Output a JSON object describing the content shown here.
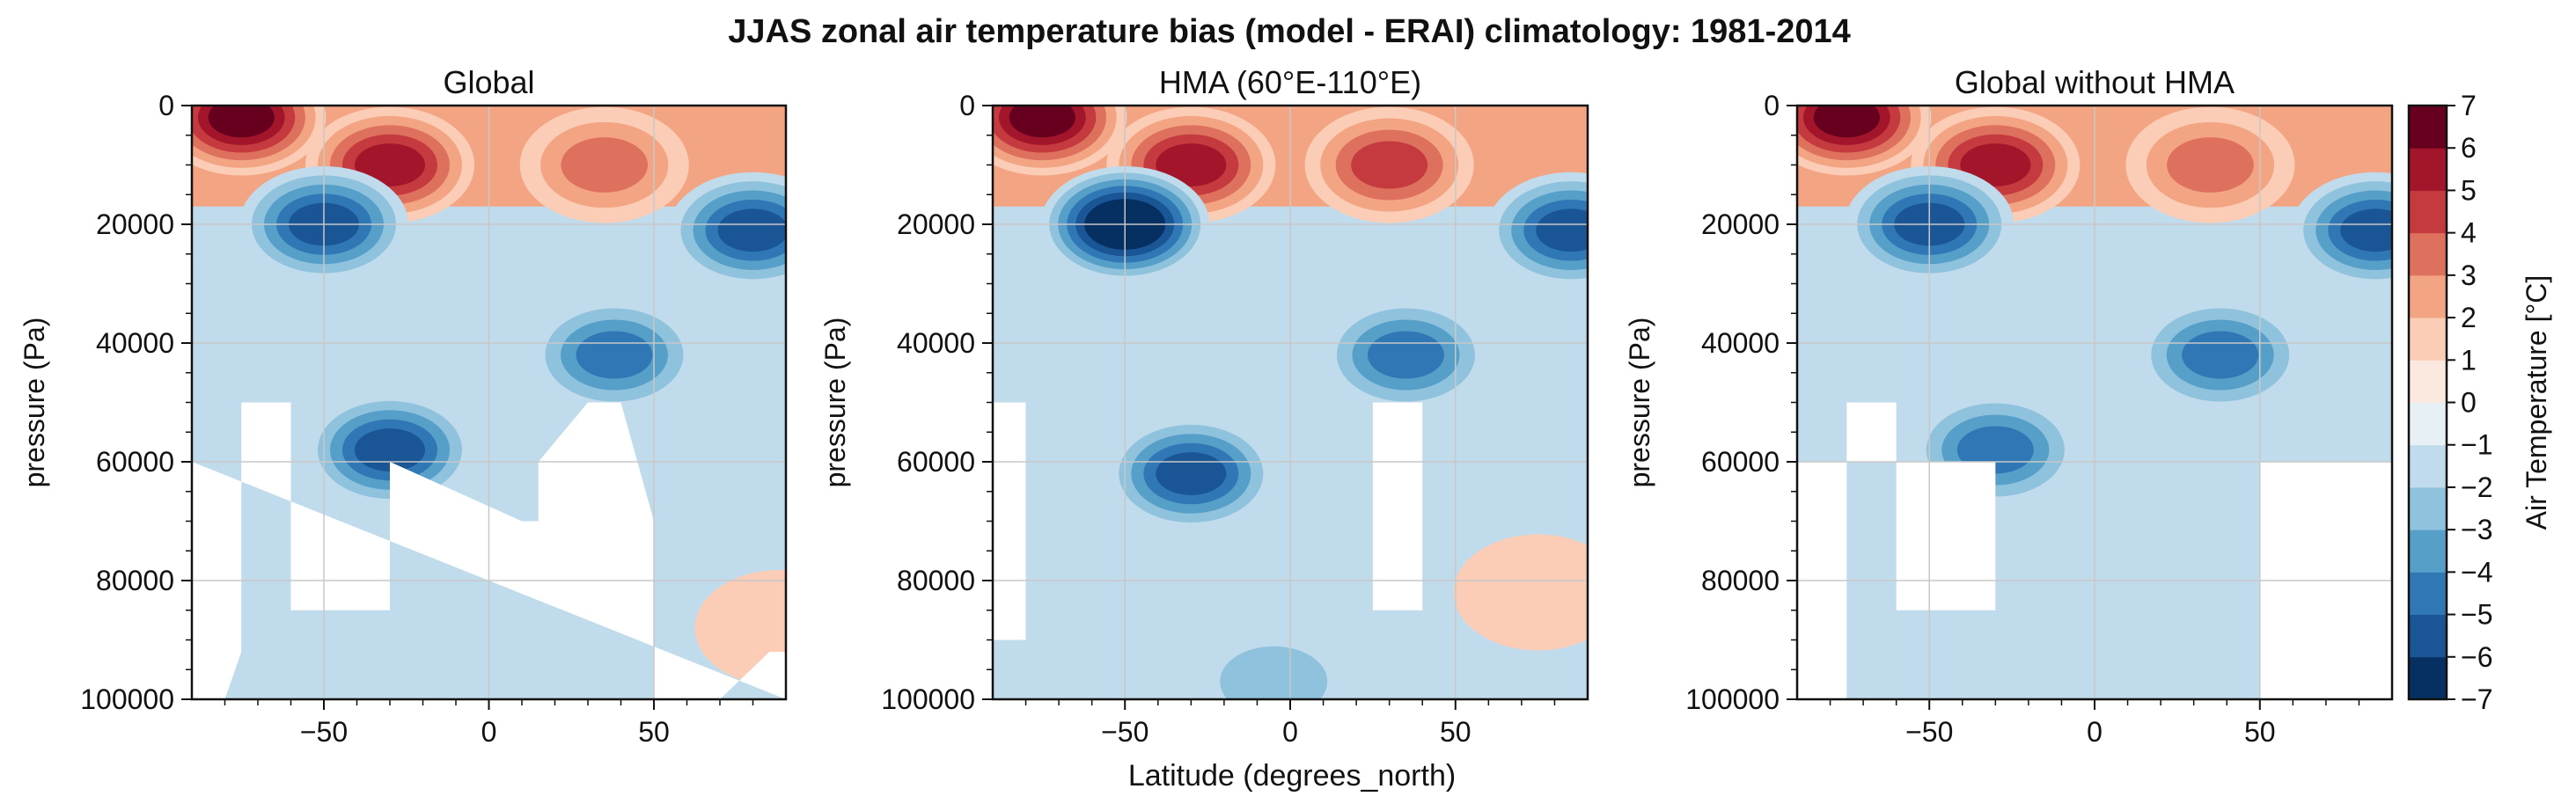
{
  "figure": {
    "suptitle": "JJAS zonal air temperature bias (model - ERAI) climatology: 1981-2014",
    "shared_xlabel": "Latitude (degrees_north)"
  },
  "colorbar": {
    "label": "Air Temperature [°C]",
    "levels": [
      -7,
      -6,
      -5,
      -4,
      -3,
      -2,
      -1,
      0,
      1,
      2,
      3,
      4,
      5,
      6,
      7
    ],
    "tick_labels": [
      "−7",
      "−6",
      "−5",
      "−4",
      "−3",
      "−2",
      "−1",
      "0",
      "1",
      "2",
      "3",
      "4",
      "5",
      "6",
      "7"
    ],
    "colors": [
      "#053061",
      "#1a5596",
      "#2f78b5",
      "#569fc9",
      "#8fc2dd",
      "#c0dbeb",
      "#e7f0f5",
      "#fbe9e0",
      "#fbcdb6",
      "#f3a583",
      "#de715e",
      "#c43a3f",
      "#a2152a",
      "#67001f"
    ]
  },
  "chart_data": [
    {
      "type": "heatmap",
      "title": "Global",
      "xlabel": "",
      "ylabel": "pressure (Pa)",
      "xlim": [
        -90,
        90
      ],
      "ylim": [
        100000,
        0
      ],
      "xticks": [
        -50,
        0,
        50
      ],
      "xtick_labels": [
        "−50",
        "0",
        "50"
      ],
      "yticks": [
        0,
        20000,
        40000,
        60000,
        80000,
        100000
      ],
      "ytick_labels": [
        "0",
        "20000",
        "40000",
        "60000",
        "80000",
        "100000"
      ],
      "grid": true,
      "tropopause_bias": 2,
      "masked_regions": [
        {
          "x": [
            -90,
            -90,
            -80,
            -75,
            -75,
            -60,
            -60,
            -30,
            -30,
            10,
            15,
            15,
            30,
            40,
            50,
            50,
            70,
            85,
            90,
            90
          ],
          "y": [
            60000,
            100000,
            100000,
            92000,
            50000,
            50000,
            85000,
            85000,
            60000,
            70000,
            70000,
            60000,
            50000,
            50000,
            70000,
            100000,
            100000,
            92000,
            92000,
            100000
          ]
        }
      ],
      "bias_features": [
        {
          "lat": -75,
          "pressure": 2000,
          "value": 6
        },
        {
          "lat": -30,
          "pressure": 10000,
          "value": 5
        },
        {
          "lat": 35,
          "pressure": 10000,
          "value": 3
        },
        {
          "lat": -50,
          "pressure": 20000,
          "value": -5
        },
        {
          "lat": 80,
          "pressure": 21000,
          "value": -5
        },
        {
          "lat": -30,
          "pressure": 58000,
          "value": -5
        },
        {
          "lat": 38,
          "pressure": 42000,
          "value": -4
        },
        {
          "lat": 88,
          "pressure": 88000,
          "value": 1
        }
      ]
    },
    {
      "type": "heatmap",
      "title": "HMA (60°E-110°E)",
      "xlabel": "Latitude (degrees_north)",
      "ylabel": "pressure (Pa)",
      "xlim": [
        -90,
        90
      ],
      "ylim": [
        100000,
        0
      ],
      "xticks": [
        -50,
        0,
        50
      ],
      "xtick_labels": [
        "−50",
        "0",
        "50"
      ],
      "yticks": [
        0,
        20000,
        40000,
        60000,
        80000,
        100000
      ],
      "ytick_labels": [
        "0",
        "20000",
        "40000",
        "60000",
        "80000",
        "100000"
      ],
      "grid": true,
      "tropopause_bias": 2,
      "masked_regions": [
        {
          "x": [
            -90,
            -90,
            -80,
            -80
          ],
          "y": [
            50000,
            90000,
            90000,
            50000
          ]
        },
        {
          "x": [
            25,
            25,
            40,
            40
          ],
          "y": [
            50000,
            85000,
            85000,
            50000
          ]
        }
      ],
      "bias_features": [
        {
          "lat": -75,
          "pressure": 2000,
          "value": 6
        },
        {
          "lat": -30,
          "pressure": 10000,
          "value": 5
        },
        {
          "lat": 30,
          "pressure": 10000,
          "value": 4
        },
        {
          "lat": -50,
          "pressure": 20000,
          "value": -7
        },
        {
          "lat": 85,
          "pressure": 21000,
          "value": -5
        },
        {
          "lat": -30,
          "pressure": 62000,
          "value": -5
        },
        {
          "lat": 35,
          "pressure": 42000,
          "value": -4
        },
        {
          "lat": 75,
          "pressure": 82000,
          "value": 1
        },
        {
          "lat": -5,
          "pressure": 97000,
          "value": -2
        }
      ]
    },
    {
      "type": "heatmap",
      "title": "Global without HMA",
      "xlabel": "",
      "ylabel": "pressure (Pa)",
      "xlim": [
        -90,
        90
      ],
      "ylim": [
        100000,
        0
      ],
      "xticks": [
        -50,
        0,
        50
      ],
      "xtick_labels": [
        "−50",
        "0",
        "50"
      ],
      "yticks": [
        0,
        20000,
        40000,
        60000,
        80000,
        100000
      ],
      "ytick_labels": [
        "0",
        "20000",
        "40000",
        "60000",
        "80000",
        "100000"
      ],
      "grid": true,
      "tropopause_bias": 2,
      "masked_regions": [
        {
          "x": [
            -90,
            -90,
            -75,
            -75,
            -60,
            -60,
            -30,
            -30,
            50,
            50,
            90,
            90
          ],
          "y": [
            60000,
            100000,
            100000,
            50000,
            50000,
            85000,
            85000,
            60000,
            60000,
            100000,
            100000,
            60000
          ]
        }
      ],
      "bias_features": [
        {
          "lat": -75,
          "pressure": 2000,
          "value": 6
        },
        {
          "lat": -30,
          "pressure": 10000,
          "value": 5
        },
        {
          "lat": 35,
          "pressure": 10000,
          "value": 3
        },
        {
          "lat": -50,
          "pressure": 20000,
          "value": -5
        },
        {
          "lat": 85,
          "pressure": 21000,
          "value": -5
        },
        {
          "lat": -30,
          "pressure": 58000,
          "value": -4
        },
        {
          "lat": 38,
          "pressure": 42000,
          "value": -4
        },
        {
          "lat": 88,
          "pressure": 88000,
          "value": 1
        }
      ]
    }
  ]
}
